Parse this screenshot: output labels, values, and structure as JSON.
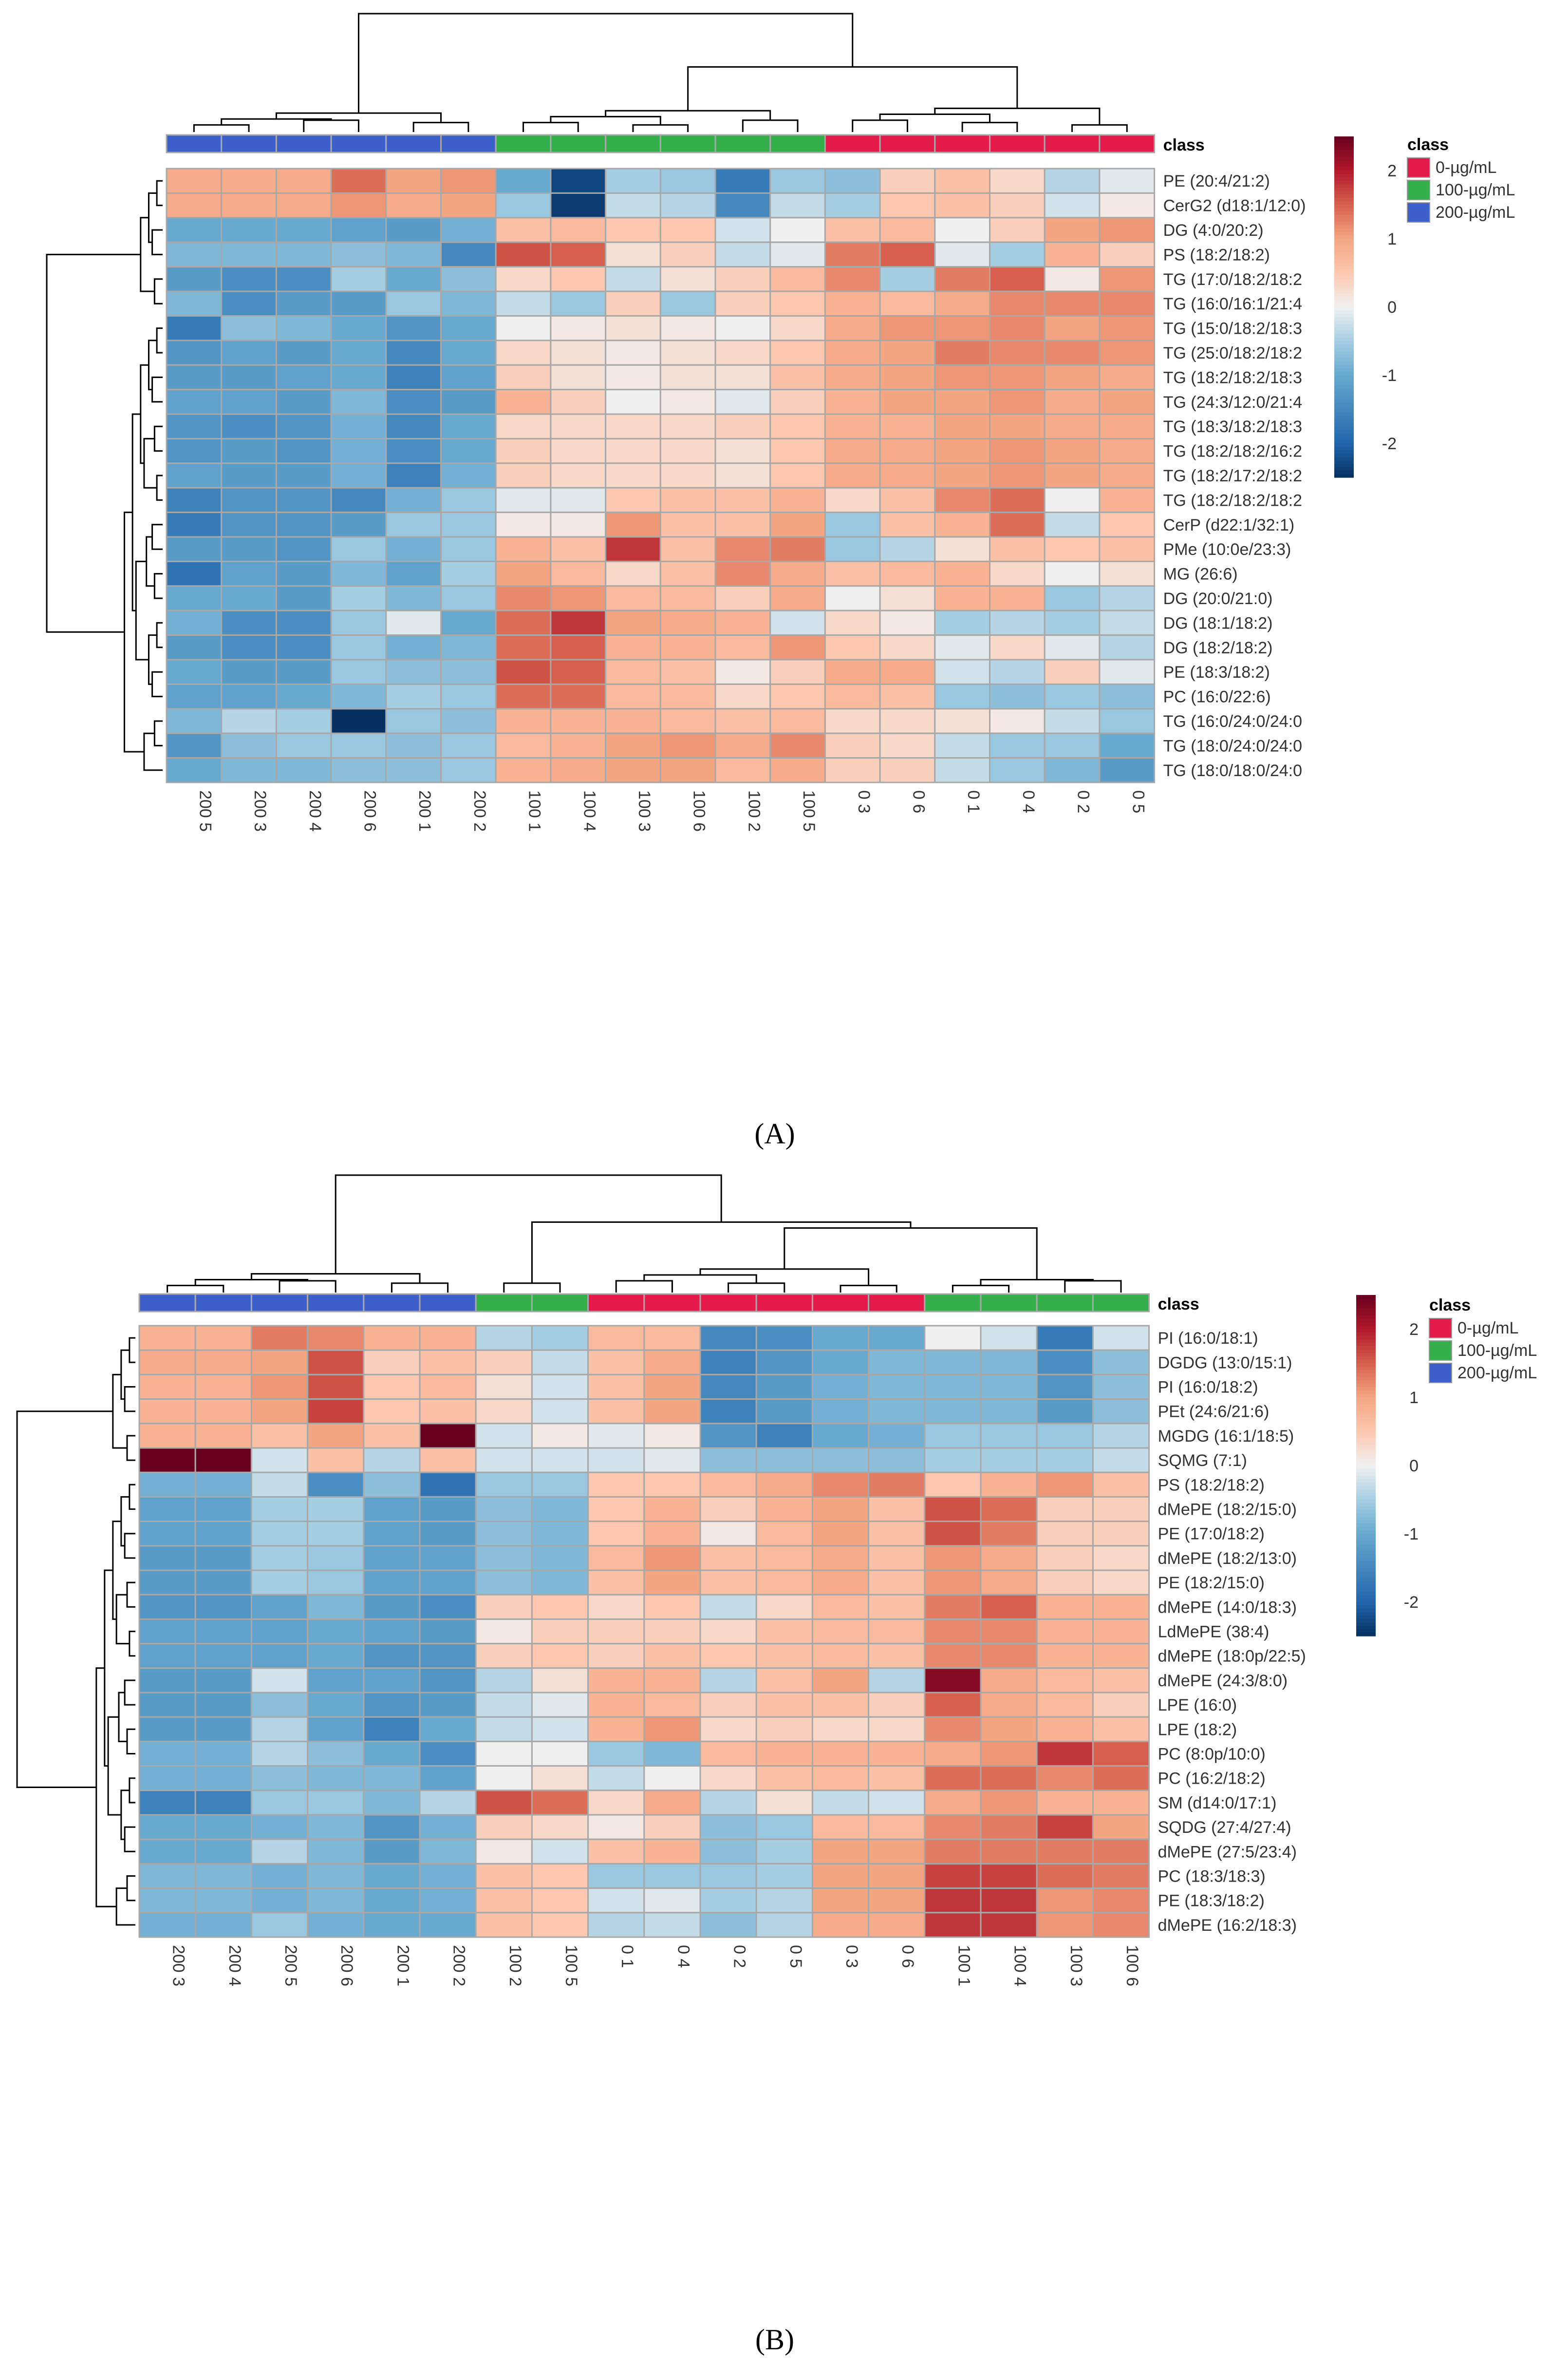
{
  "chart_data": [
    {
      "type": "heatmap",
      "panel_label": "(A)",
      "annotation_title": "class",
      "legend_title": "class",
      "legend_entries": [
        {
          "label": "0-µg/mL",
          "color": "#e31a4a"
        },
        {
          "label": "100-µg/mL",
          "color": "#33b04a"
        },
        {
          "label": "200-µg/mL",
          "color": "#3d5fcc"
        }
      ],
      "colorbar_range": [
        -2.5,
        2.5
      ],
      "colorbar_ticks": [
        "2",
        "1",
        "0",
        "-1",
        "-2"
      ],
      "colorbar_tick_values": [
        2,
        1,
        0,
        -1,
        -2
      ],
      "columns": [
        "200 5",
        "200 3",
        "200 4",
        "200 6",
        "200 1",
        "200 2",
        "100 1",
        "100 4",
        "100 3",
        "100 6",
        "100 2",
        "100 5",
        "0 3",
        "0 6",
        "0 1",
        "0 4",
        "0 2",
        "0 5"
      ],
      "column_classes": [
        "200",
        "200",
        "200",
        "200",
        "200",
        "200",
        "100",
        "100",
        "100",
        "100",
        "100",
        "100",
        "0",
        "0",
        "0",
        "0",
        "0",
        "0"
      ],
      "rows": [
        "PE (20:4/21:2)",
        "CerG2 (d18:1/12:0)",
        "DG (4:0/20:2)",
        "PS (18:2/18:2)",
        "TG (17:0/18:2/18:2",
        "TG (16:0/16:1/21:4",
        "TG (15:0/18:2/18:3",
        "TG (25:0/18:2/18:2",
        "TG (18:2/18:2/18:3",
        "TG (24:3/12:0/21:4",
        "TG (18:3/18:2/18:3",
        "TG (18:2/18:2/16:2",
        "TG (18:2/17:2/18:2",
        "TG (18:2/18:2/18:2",
        "CerP (d22:1/32:1)",
        "PMe (10:0e/23:3)",
        "MG (26:6)",
        "DG (20:0/21:0)",
        "DG (18:1/18:2)",
        "DG (18:2/18:2)",
        "PE (18:3/18:2)",
        "PC (16:0/22:6)",
        "TG (16:0/24:0/24:0",
        "TG (18:0/24:0/24:0",
        "TG (18:0/18:0/24:0"
      ],
      "values": [
        [
          0.9,
          0.9,
          0.9,
          1.4,
          1.0,
          1.1,
          -1.0,
          -2.3,
          -0.5,
          -0.6,
          -1.7,
          -0.6,
          -0.7,
          0.4,
          0.6,
          0.3,
          -0.4,
          -0.1
        ],
        [
          0.9,
          0.9,
          0.9,
          1.1,
          0.9,
          1.0,
          -0.6,
          -2.4,
          -0.3,
          -0.4,
          -1.5,
          -0.3,
          -0.5,
          0.5,
          0.6,
          0.4,
          -0.2,
          0.1
        ],
        [
          -1.0,
          -1.0,
          -1.0,
          -1.1,
          -1.2,
          -0.9,
          0.6,
          0.7,
          0.5,
          0.5,
          -0.2,
          0.0,
          0.6,
          0.7,
          0.0,
          0.4,
          1.0,
          1.1
        ],
        [
          -0.8,
          -0.8,
          -0.8,
          -0.7,
          -0.8,
          -1.5,
          1.6,
          1.5,
          0.2,
          0.4,
          -0.3,
          -0.1,
          1.3,
          1.5,
          -0.1,
          -0.5,
          0.8,
          0.4
        ],
        [
          -1.2,
          -1.4,
          -1.4,
          -0.5,
          -1.0,
          -0.7,
          0.3,
          0.5,
          -0.3,
          0.2,
          0.4,
          0.7,
          1.2,
          -0.5,
          1.3,
          1.5,
          0.1,
          1.1
        ],
        [
          -0.8,
          -1.4,
          -1.2,
          -1.2,
          -0.6,
          -0.8,
          -0.3,
          -0.6,
          0.4,
          -0.6,
          0.4,
          0.5,
          0.8,
          0.7,
          0.9,
          1.2,
          1.2,
          1.2
        ],
        [
          -1.7,
          -0.7,
          -0.8,
          -1.0,
          -1.3,
          -1.0,
          0.0,
          0.1,
          0.2,
          0.1,
          0.0,
          0.3,
          0.9,
          1.1,
          1.1,
          1.2,
          1.0,
          1.1
        ],
        [
          -1.3,
          -1.1,
          -1.2,
          -1.0,
          -1.5,
          -1.0,
          0.3,
          0.2,
          0.1,
          0.2,
          0.3,
          0.5,
          0.9,
          1.0,
          1.3,
          1.2,
          1.2,
          1.1
        ],
        [
          -1.2,
          -1.2,
          -1.1,
          -1.0,
          -1.6,
          -1.1,
          0.4,
          0.2,
          0.1,
          0.2,
          0.2,
          0.6,
          0.9,
          1.0,
          1.1,
          1.1,
          1.0,
          0.9
        ],
        [
          -1.1,
          -1.1,
          -1.2,
          -0.8,
          -1.4,
          -1.2,
          0.8,
          0.4,
          0.0,
          0.1,
          -0.1,
          0.4,
          0.8,
          1.0,
          1.0,
          1.1,
          0.9,
          1.0
        ],
        [
          -1.3,
          -1.4,
          -1.3,
          -0.9,
          -1.5,
          -1.0,
          0.3,
          0.3,
          0.3,
          0.3,
          0.4,
          0.5,
          0.8,
          0.8,
          1.0,
          1.0,
          0.9,
          0.9
        ],
        [
          -1.3,
          -1.2,
          -1.3,
          -0.9,
          -1.4,
          -1.0,
          0.4,
          0.3,
          0.3,
          0.3,
          0.2,
          0.5,
          0.9,
          0.9,
          1.0,
          1.1,
          1.0,
          0.9
        ],
        [
          -1.1,
          -1.2,
          -1.2,
          -0.9,
          -1.6,
          -0.9,
          0.4,
          0.3,
          0.3,
          0.3,
          0.2,
          0.5,
          0.9,
          0.9,
          1.0,
          1.1,
          1.0,
          0.9
        ],
        [
          -1.6,
          -1.3,
          -1.3,
          -1.5,
          -0.9,
          -0.6,
          -0.1,
          -0.1,
          0.5,
          0.6,
          0.6,
          0.8,
          0.3,
          0.6,
          1.2,
          1.4,
          0.0,
          0.8
        ],
        [
          -1.7,
          -1.3,
          -1.3,
          -1.2,
          -0.6,
          -0.6,
          0.1,
          0.1,
          1.1,
          0.6,
          0.6,
          1.0,
          -0.6,
          0.6,
          0.8,
          1.4,
          -0.3,
          0.5
        ],
        [
          -1.2,
          -1.2,
          -1.3,
          -0.6,
          -0.9,
          -0.6,
          0.8,
          0.6,
          1.8,
          0.6,
          1.2,
          1.3,
          -0.6,
          -0.4,
          0.2,
          0.6,
          0.5,
          0.6
        ],
        [
          -1.8,
          -1.1,
          -1.2,
          -0.8,
          -1.1,
          -0.5,
          1.0,
          0.7,
          0.3,
          0.6,
          1.2,
          0.9,
          0.6,
          0.7,
          0.8,
          0.3,
          0.0,
          0.2
        ],
        [
          -1.0,
          -1.0,
          -1.2,
          -0.5,
          -0.8,
          -0.6,
          1.2,
          1.1,
          0.7,
          0.7,
          0.4,
          0.9,
          0.0,
          0.2,
          0.8,
          0.8,
          -0.6,
          -0.4
        ],
        [
          -0.9,
          -1.4,
          -1.4,
          -0.6,
          -0.1,
          -1.0,
          1.4,
          1.8,
          1.0,
          0.9,
          0.8,
          -0.2,
          0.3,
          0.1,
          -0.5,
          -0.4,
          -0.5,
          -0.3
        ],
        [
          -1.2,
          -1.4,
          -1.4,
          -0.6,
          -0.9,
          -0.8,
          1.4,
          1.5,
          0.8,
          0.8,
          0.7,
          1.1,
          0.5,
          0.3,
          -0.1,
          0.3,
          -0.1,
          -0.4
        ],
        [
          -1.0,
          -1.2,
          -1.2,
          -0.6,
          -0.7,
          -0.7,
          1.6,
          1.5,
          0.7,
          0.6,
          0.1,
          0.4,
          0.9,
          0.9,
          -0.2,
          -0.4,
          0.4,
          -0.1
        ],
        [
          -1.1,
          -1.1,
          -1.0,
          -0.8,
          -0.5,
          -0.6,
          1.4,
          1.4,
          0.7,
          0.7,
          0.3,
          0.5,
          0.7,
          0.6,
          -0.6,
          -0.7,
          -0.6,
          -0.7
        ],
        [
          -0.8,
          -0.4,
          -0.5,
          -2.7,
          -0.6,
          -0.7,
          0.8,
          0.8,
          0.8,
          0.7,
          0.6,
          0.7,
          0.3,
          0.3,
          0.2,
          0.1,
          -0.3,
          -0.6
        ],
        [
          -1.3,
          -0.7,
          -0.6,
          -0.6,
          -0.7,
          -0.6,
          0.7,
          0.8,
          1.0,
          1.1,
          0.9,
          1.2,
          0.4,
          0.3,
          -0.3,
          -0.6,
          -0.6,
          -1.0
        ],
        [
          -1.0,
          -0.8,
          -0.8,
          -0.7,
          -0.7,
          -0.6,
          0.8,
          0.9,
          1.0,
          1.0,
          0.7,
          0.9,
          0.4,
          0.4,
          -0.3,
          -0.6,
          -0.8,
          -1.2
        ]
      ]
    },
    {
      "type": "heatmap",
      "panel_label": "(B)",
      "annotation_title": "class",
      "legend_title": "class",
      "legend_entries": [
        {
          "label": "0-µg/mL",
          "color": "#e31a4a"
        },
        {
          "label": "100-µg/mL",
          "color": "#33b04a"
        },
        {
          "label": "200-µg/mL",
          "color": "#3d5fcc"
        }
      ],
      "colorbar_range": [
        -2.5,
        2.5
      ],
      "colorbar_ticks": [
        "2",
        "1",
        "0",
        "-1",
        "-2"
      ],
      "colorbar_tick_values": [
        2,
        1,
        0,
        -1,
        -2
      ],
      "columns": [
        "200 3",
        "200 4",
        "200 5",
        "200 6",
        "200 1",
        "200 2",
        "100 2",
        "100 5",
        "0 1",
        "0 4",
        "0 2",
        "0 5",
        "0 3",
        "0 6",
        "100 1",
        "100 4",
        "100 3",
        "100 6"
      ],
      "column_classes": [
        "200",
        "200",
        "200",
        "200",
        "200",
        "200",
        "100",
        "100",
        "0",
        "0",
        "0",
        "0",
        "0",
        "0",
        "100",
        "100",
        "100",
        "100"
      ],
      "rows": [
        "PI (16:0/18:1)",
        "DGDG (13:0/15:1)",
        "PI (16:0/18:2)",
        "PEt (24:6/21:6)",
        "MGDG (16:1/18:5)",
        "SQMG (7:1)",
        "PS (18:2/18:2)",
        "dMePE (18:2/15:0)",
        "PE (17:0/18:2)",
        "dMePE (18:2/13:0)",
        "PE (18:2/15:0)",
        "dMePE (14:0/18:3)",
        "LdMePE (38:4)",
        "dMePE (18:0p/22:5)",
        "dMePE (24:3/8:0)",
        "LPE (16:0)",
        "LPE (18:2)",
        "PC (8:0p/10:0)",
        "PC (16:2/18:2)",
        "SM (d14:0/17:1)",
        "SQDG (27:4/27:4)",
        "dMePE (27:5/23:4)",
        "PC (18:3/18:3)",
        "PE (18:3/18:2)",
        "dMePE (16:2/18:3)"
      ],
      "values": [
        [
          0.8,
          0.8,
          1.3,
          1.2,
          0.8,
          0.8,
          -0.4,
          -0.5,
          0.7,
          0.7,
          -1.5,
          -1.4,
          -1.0,
          -1.0,
          0.0,
          -0.2,
          -1.7,
          -0.2
        ],
        [
          0.9,
          0.9,
          1.0,
          1.6,
          0.4,
          0.6,
          0.4,
          -0.3,
          0.6,
          0.9,
          -1.6,
          -1.3,
          -1.0,
          -0.8,
          -0.8,
          -0.8,
          -1.4,
          -0.7
        ],
        [
          0.8,
          0.8,
          1.1,
          1.6,
          0.5,
          0.7,
          0.2,
          -0.2,
          0.6,
          1.0,
          -1.5,
          -1.2,
          -0.9,
          -0.8,
          -0.8,
          -0.8,
          -1.3,
          -0.7
        ],
        [
          0.8,
          0.8,
          1.0,
          1.7,
          0.5,
          0.6,
          0.3,
          -0.2,
          0.6,
          1.0,
          -1.6,
          -1.2,
          -0.9,
          -0.8,
          -0.8,
          -0.8,
          -1.2,
          -0.7
        ],
        [
          0.8,
          0.8,
          0.6,
          1.0,
          0.6,
          2.6,
          -0.2,
          0.1,
          -0.1,
          0.1,
          -1.3,
          -1.6,
          -1.0,
          -0.9,
          -0.6,
          -0.6,
          -0.6,
          -0.4
        ],
        [
          2.6,
          2.6,
          -0.2,
          0.6,
          -0.4,
          0.6,
          -0.2,
          -0.2,
          -0.2,
          -0.1,
          -0.7,
          -0.7,
          -0.7,
          -0.7,
          -0.5,
          -0.5,
          -0.5,
          -0.3
        ],
        [
          -0.9,
          -0.9,
          -0.3,
          -1.4,
          -0.7,
          -1.8,
          -0.6,
          -0.6,
          0.5,
          0.5,
          0.7,
          0.9,
          1.2,
          1.3,
          0.5,
          0.8,
          1.1,
          0.6
        ],
        [
          -1.1,
          -1.1,
          -0.5,
          -0.5,
          -1.1,
          -1.2,
          -0.7,
          -0.8,
          0.5,
          0.8,
          0.4,
          0.8,
          1.0,
          0.6,
          1.6,
          1.4,
          0.4,
          0.4
        ],
        [
          -1.1,
          -1.1,
          -0.5,
          -0.5,
          -1.1,
          -1.2,
          -0.7,
          -0.8,
          0.5,
          0.8,
          0.1,
          0.7,
          1.0,
          0.6,
          1.6,
          1.3,
          0.4,
          0.4
        ],
        [
          -1.2,
          -1.2,
          -0.5,
          -0.6,
          -1.1,
          -1.1,
          -0.7,
          -0.8,
          0.7,
          1.1,
          0.6,
          0.7,
          0.9,
          0.6,
          1.1,
          0.9,
          0.4,
          0.3
        ],
        [
          -1.2,
          -1.2,
          -0.5,
          -0.6,
          -1.1,
          -1.1,
          -0.7,
          -0.8,
          0.6,
          1.0,
          0.6,
          0.7,
          0.9,
          0.6,
          1.1,
          0.9,
          0.4,
          0.3
        ],
        [
          -1.3,
          -1.3,
          -1.1,
          -0.8,
          -1.2,
          -1.4,
          0.4,
          0.5,
          0.3,
          0.5,
          -0.3,
          0.3,
          0.7,
          0.6,
          1.3,
          1.5,
          0.8,
          0.8
        ],
        [
          -1.1,
          -1.1,
          -1.1,
          -1.0,
          -1.1,
          -1.2,
          0.1,
          0.4,
          0.4,
          0.4,
          0.3,
          0.6,
          0.7,
          0.7,
          1.2,
          1.2,
          0.8,
          0.8
        ],
        [
          -1.1,
          -1.1,
          -1.1,
          -1.0,
          -1.3,
          -1.3,
          0.4,
          0.5,
          0.4,
          0.6,
          0.5,
          0.6,
          0.7,
          0.6,
          1.2,
          1.2,
          0.8,
          0.8
        ],
        [
          -1.2,
          -1.2,
          -0.2,
          -1.1,
          -1.1,
          -1.3,
          -0.4,
          0.2,
          0.8,
          0.8,
          -0.4,
          0.6,
          1.0,
          -0.4,
          2.3,
          0.9,
          0.7,
          0.6
        ],
        [
          -1.2,
          -1.2,
          -0.7,
          -1.0,
          -1.3,
          -1.2,
          -0.3,
          -0.1,
          0.8,
          0.7,
          0.4,
          0.6,
          0.6,
          0.4,
          1.5,
          0.9,
          0.7,
          0.4
        ],
        [
          -1.2,
          -1.2,
          -0.4,
          -1.1,
          -1.6,
          -1.0,
          -0.3,
          -0.2,
          0.8,
          1.1,
          0.3,
          0.4,
          0.3,
          0.3,
          1.2,
          1.0,
          0.8,
          0.6
        ],
        [
          -0.9,
          -0.9,
          -0.4,
          -0.7,
          -1.0,
          -1.4,
          0.0,
          0.0,
          -0.6,
          -0.8,
          0.7,
          0.8,
          0.8,
          0.8,
          0.9,
          1.1,
          1.8,
          1.5
        ],
        [
          -0.9,
          -0.9,
          -0.7,
          -0.8,
          -0.8,
          -1.1,
          0.0,
          0.2,
          -0.3,
          0.0,
          0.3,
          0.6,
          0.7,
          0.6,
          1.4,
          1.4,
          1.2,
          1.4
        ],
        [
          -1.6,
          -1.6,
          -0.6,
          -0.6,
          -0.8,
          -0.4,
          1.6,
          1.4,
          0.3,
          0.9,
          -0.4,
          0.2,
          -0.3,
          -0.2,
          0.9,
          1.1,
          0.8,
          0.8
        ],
        [
          -1.0,
          -1.0,
          -0.9,
          -0.8,
          -1.3,
          -0.9,
          0.4,
          0.3,
          0.1,
          0.4,
          -0.7,
          -0.6,
          0.7,
          0.7,
          1.2,
          1.3,
          1.7,
          1.0
        ],
        [
          -1.0,
          -1.0,
          -0.4,
          -0.8,
          -1.2,
          -0.8,
          0.1,
          -0.2,
          0.6,
          0.8,
          -0.7,
          -0.5,
          1.0,
          1.0,
          1.3,
          1.3,
          1.3,
          1.3
        ],
        [
          -0.8,
          -0.8,
          -0.9,
          -0.8,
          -1.0,
          -0.9,
          0.6,
          0.5,
          -0.6,
          -0.6,
          -0.6,
          -0.5,
          1.0,
          1.0,
          1.7,
          1.7,
          1.4,
          1.3
        ],
        [
          -0.8,
          -0.8,
          -0.9,
          -0.8,
          -1.0,
          -0.9,
          0.6,
          0.5,
          -0.2,
          -0.1,
          -0.5,
          -0.4,
          1.0,
          1.0,
          1.8,
          1.8,
          1.1,
          1.2
        ],
        [
          -0.9,
          -0.9,
          -0.6,
          -0.9,
          -1.0,
          -1.0,
          0.6,
          0.5,
          -0.4,
          -0.3,
          -0.7,
          -0.4,
          0.9,
          0.9,
          1.8,
          1.8,
          1.1,
          1.2
        ]
      ]
    }
  ]
}
